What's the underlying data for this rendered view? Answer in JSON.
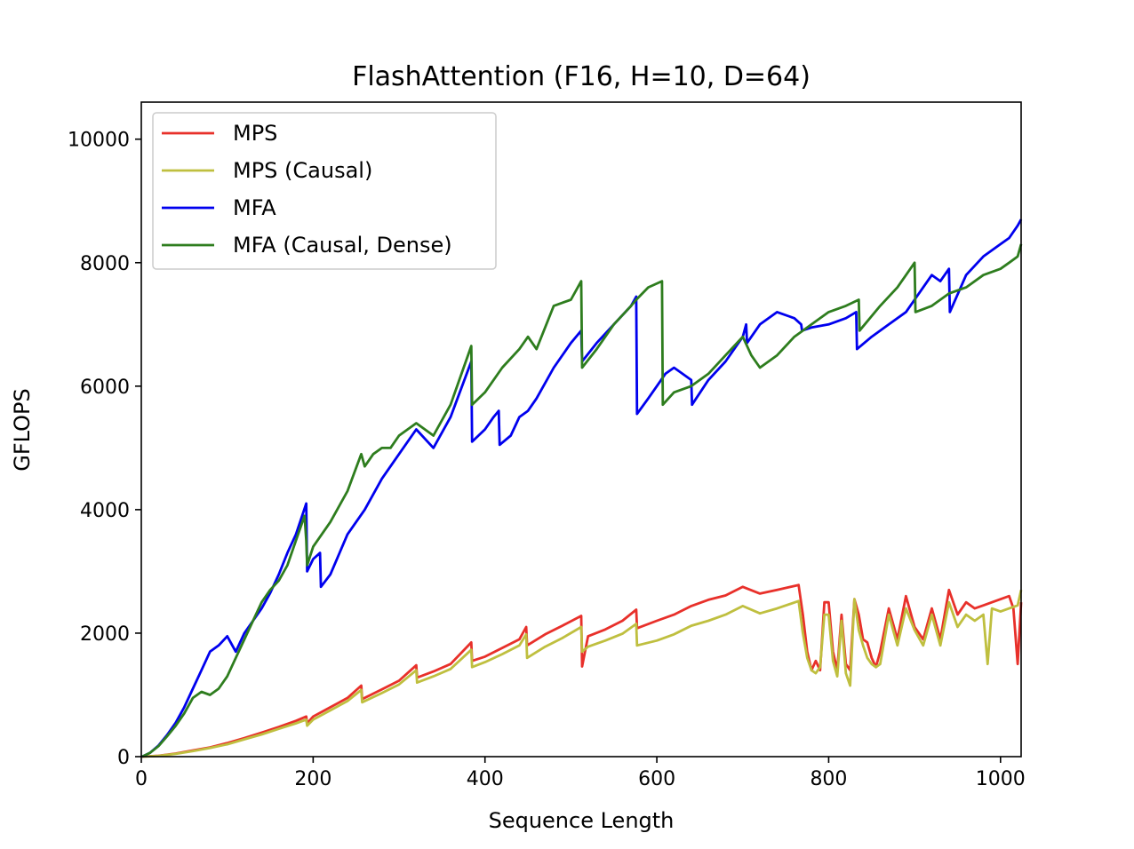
{
  "chart_data": {
    "type": "line",
    "title": "FlashAttention (F16, H=10, D=64)",
    "xlabel": "Sequence Length",
    "ylabel": "GFLOPS",
    "xlim": [
      0,
      1024
    ],
    "ylim": [
      0,
      10600
    ],
    "xticks": [
      0,
      200,
      400,
      600,
      800,
      1000
    ],
    "yticks": [
      0,
      2000,
      4000,
      6000,
      8000,
      10000
    ],
    "legend_position": "top-left",
    "grid": false,
    "series": [
      {
        "name": "MPS",
        "color": "#e8302a",
        "x": [
          1,
          20,
          40,
          60,
          80,
          100,
          120,
          140,
          160,
          180,
          192,
          193,
          200,
          220,
          240,
          256,
          257,
          280,
          300,
          320,
          321,
          340,
          360,
          384,
          385,
          400,
          420,
          440,
          448,
          449,
          470,
          490,
          512,
          513,
          520,
          540,
          560,
          576,
          577,
          600,
          620,
          640,
          660,
          680,
          700,
          720,
          740,
          765,
          770,
          775,
          780,
          785,
          790,
          795,
          800,
          805,
          810,
          815,
          820,
          825,
          830,
          835,
          840,
          845,
          850,
          855,
          860,
          870,
          880,
          890,
          900,
          910,
          920,
          930,
          940,
          950,
          960,
          970,
          980,
          990,
          1000,
          1010,
          1015,
          1020,
          1024
        ],
        "y": [
          0,
          15,
          50,
          100,
          150,
          220,
          300,
          390,
          480,
          580,
          650,
          540,
          650,
          800,
          950,
          1150,
          930,
          1090,
          1230,
          1480,
          1280,
          1380,
          1500,
          1850,
          1550,
          1620,
          1760,
          1900,
          2100,
          1800,
          1980,
          2120,
          2280,
          1460,
          1950,
          2060,
          2200,
          2380,
          2080,
          2200,
          2300,
          2440,
          2540,
          2610,
          2750,
          2640,
          2700,
          2780,
          2300,
          1700,
          1400,
          1550,
          1400,
          2500,
          2500,
          1700,
          1400,
          2300,
          1500,
          1400,
          2550,
          2300,
          1900,
          1850,
          1600,
          1450,
          1700,
          2400,
          1900,
          2600,
          2100,
          1900,
          2400,
          1900,
          2700,
          2300,
          2500,
          2400,
          2450,
          2500,
          2550,
          2600,
          2400,
          1500,
          2500
        ]
      },
      {
        "name": "MPS (Causal)",
        "color": "#bfbf3f",
        "x": [
          1,
          20,
          40,
          60,
          80,
          100,
          120,
          140,
          160,
          180,
          192,
          193,
          200,
          220,
          240,
          256,
          257,
          280,
          300,
          320,
          321,
          340,
          360,
          384,
          385,
          400,
          420,
          440,
          448,
          449,
          470,
          490,
          512,
          513,
          520,
          540,
          560,
          576,
          577,
          600,
          620,
          640,
          660,
          680,
          700,
          720,
          740,
          765,
          770,
          775,
          780,
          785,
          790,
          795,
          800,
          805,
          810,
          815,
          820,
          825,
          830,
          835,
          840,
          845,
          850,
          855,
          860,
          870,
          880,
          890,
          900,
          910,
          920,
          930,
          940,
          950,
          960,
          970,
          980,
          985,
          990,
          1000,
          1010,
          1020,
          1024
        ],
        "y": [
          0,
          12,
          45,
          90,
          140,
          200,
          280,
          360,
          450,
          540,
          600,
          500,
          600,
          750,
          900,
          1080,
          880,
          1030,
          1170,
          1400,
          1200,
          1300,
          1420,
          1730,
          1450,
          1530,
          1660,
          1800,
          1980,
          1600,
          1780,
          1920,
          2100,
          1700,
          1780,
          1880,
          1990,
          2150,
          1800,
          1880,
          1980,
          2120,
          2200,
          2300,
          2440,
          2320,
          2400,
          2520,
          2000,
          1600,
          1400,
          1350,
          1450,
          2300,
          2300,
          1550,
          1300,
          2200,
          1350,
          1150,
          2550,
          2050,
          1800,
          1600,
          1500,
          1450,
          1500,
          2300,
          1800,
          2400,
          2050,
          1800,
          2300,
          1800,
          2500,
          2100,
          2300,
          2200,
          2300,
          1500,
          2400,
          2350,
          2400,
          2450,
          2700
        ]
      },
      {
        "name": "MFA",
        "color": "#0000ee",
        "x": [
          1,
          10,
          20,
          30,
          40,
          50,
          60,
          70,
          80,
          90,
          100,
          110,
          120,
          130,
          140,
          150,
          160,
          170,
          180,
          192,
          193,
          200,
          208,
          209,
          220,
          240,
          260,
          280,
          300,
          320,
          340,
          360,
          384,
          385,
          400,
          410,
          416,
          417,
          430,
          440,
          450,
          460,
          480,
          500,
          512,
          513,
          530,
          550,
          570,
          576,
          577,
          590,
          600,
          610,
          620,
          640,
          641,
          660,
          680,
          700,
          704,
          705,
          720,
          740,
          760,
          768,
          769,
          780,
          800,
          820,
          832,
          833,
          850,
          870,
          890,
          900,
          910,
          920,
          930,
          940,
          941,
          960,
          980,
          1000,
          1010,
          1020,
          1024
        ],
        "y": [
          0,
          60,
          180,
          350,
          550,
          800,
          1100,
          1400,
          1700,
          1800,
          1950,
          1700,
          2000,
          2200,
          2400,
          2650,
          2950,
          3300,
          3600,
          4100,
          3000,
          3200,
          3300,
          2750,
          2950,
          3600,
          4000,
          4500,
          4900,
          5300,
          5000,
          5500,
          6400,
          5100,
          5300,
          5500,
          5600,
          5050,
          5200,
          5500,
          5600,
          5800,
          6300,
          6700,
          6900,
          6400,
          6700,
          7000,
          7300,
          7450,
          5550,
          5800,
          6000,
          6200,
          6300,
          6100,
          5700,
          6100,
          6400,
          6800,
          7000,
          6700,
          7000,
          7200,
          7100,
          7000,
          6900,
          6950,
          7000,
          7100,
          7200,
          6600,
          6800,
          7000,
          7200,
          7400,
          7600,
          7800,
          7700,
          7900,
          7200,
          7800,
          8100,
          8300,
          8400,
          8600,
          8700
        ]
      },
      {
        "name": "MFA (Causal, Dense)",
        "color": "#2e7d1e",
        "x": [
          1,
          10,
          20,
          30,
          40,
          50,
          60,
          70,
          80,
          90,
          100,
          110,
          120,
          130,
          140,
          150,
          160,
          170,
          180,
          190,
          192,
          193,
          200,
          220,
          240,
          256,
          260,
          270,
          280,
          290,
          300,
          320,
          340,
          360,
          384,
          385,
          400,
          420,
          440,
          450,
          460,
          480,
          500,
          512,
          513,
          530,
          550,
          570,
          576,
          590,
          606,
          607,
          620,
          640,
          660,
          680,
          700,
          710,
          720,
          740,
          760,
          780,
          800,
          820,
          835,
          836,
          860,
          880,
          900,
          901,
          920,
          940,
          960,
          980,
          1000,
          1010,
          1020,
          1024
        ],
        "y": [
          0,
          60,
          170,
          330,
          500,
          700,
          950,
          1050,
          1000,
          1100,
          1300,
          1600,
          1900,
          2200,
          2500,
          2700,
          2850,
          3100,
          3500,
          3900,
          3500,
          3100,
          3400,
          3800,
          4300,
          4900,
          4700,
          4900,
          5000,
          5000,
          5200,
          5400,
          5200,
          5700,
          6650,
          5700,
          5900,
          6300,
          6600,
          6800,
          6600,
          7300,
          7400,
          7700,
          6300,
          6600,
          7000,
          7300,
          7400,
          7600,
          7700,
          5700,
          5900,
          6000,
          6200,
          6500,
          6800,
          6500,
          6300,
          6500,
          6800,
          7000,
          7200,
          7300,
          7400,
          6900,
          7300,
          7600,
          8000,
          7200,
          7300,
          7500,
          7600,
          7800,
          7900,
          8000,
          8100,
          8300
        ]
      }
    ]
  }
}
